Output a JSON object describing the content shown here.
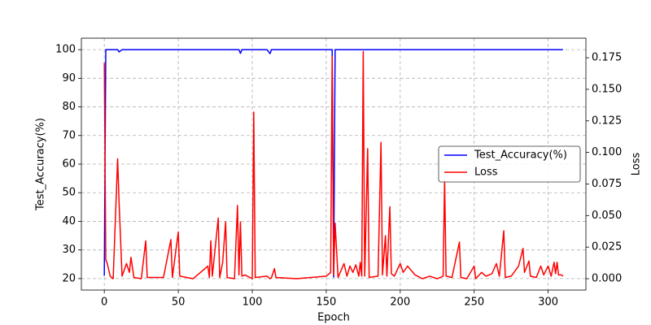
{
  "chart_data": {
    "type": "line",
    "xlabel": "Epoch",
    "ylabel": "Test_Accuracy(%)",
    "y2label": "Loss",
    "x": [
      0,
      1,
      2,
      4,
      6,
      9,
      10,
      12,
      15,
      17,
      18,
      20,
      25,
      28,
      29,
      40,
      45,
      46,
      50,
      51,
      60,
      70,
      71,
      72,
      73,
      77,
      78,
      80,
      82,
      83,
      88,
      90,
      91,
      92,
      93,
      95,
      100,
      101,
      102,
      110,
      112,
      113,
      115,
      116,
      130,
      150,
      153,
      154,
      155,
      156,
      158,
      162,
      164,
      166,
      168,
      170,
      172,
      173,
      174,
      175,
      176,
      178,
      179,
      185,
      187,
      188,
      190,
      191,
      193,
      194,
      196,
      200,
      202,
      205,
      210,
      215,
      220,
      225,
      229,
      230,
      231,
      235,
      240,
      241,
      245,
      250,
      251,
      255,
      258,
      262,
      265,
      267,
      270,
      271,
      275,
      280,
      283,
      284,
      287,
      288,
      292,
      295,
      297,
      300,
      302,
      304,
      305,
      306,
      307,
      309,
      310
    ],
    "series": [
      {
        "name": "Test_Accuracy(%)",
        "color": "#0000ff",
        "axis": "y",
        "values": [
          21,
          100,
          100,
          100,
          100,
          100,
          99.2,
          100,
          100,
          100,
          100,
          100,
          100,
          100,
          100,
          100,
          100,
          100,
          100,
          100,
          100,
          100,
          100,
          100,
          100,
          100,
          100,
          100,
          100,
          100,
          100,
          100,
          100,
          98.7,
          100,
          100,
          100,
          100,
          100,
          100,
          98.6,
          100,
          100,
          100,
          100,
          100,
          100,
          100,
          20.5,
          100,
          100,
          100,
          100,
          100,
          100,
          100,
          100,
          100,
          100,
          100,
          100,
          100,
          100,
          100,
          100,
          100,
          100,
          100,
          100,
          100,
          100,
          100,
          100,
          100,
          100,
          100,
          100,
          100,
          100,
          100,
          100,
          100,
          100,
          100,
          100,
          100,
          100,
          100,
          100,
          100,
          100,
          100,
          100,
          100,
          100,
          100,
          100,
          100,
          100,
          100,
          100,
          100,
          100,
          100,
          100,
          100,
          100,
          100,
          100,
          100,
          100
        ]
      },
      {
        "name": "Loss",
        "color": "#ff0000",
        "axis": "y2",
        "values": [
          0.171,
          0.015,
          0.012,
          0.002,
          0.0,
          0.095,
          0.06,
          0.002,
          0.012,
          0.005,
          0.017,
          0.001,
          0.0,
          0.03,
          0.001,
          0.001,
          0.031,
          0.001,
          0.037,
          0.002,
          0.0,
          0.01,
          0.001,
          0.03,
          0.002,
          0.048,
          0.001,
          0.013,
          0.045,
          0.001,
          0.0,
          0.058,
          0.003,
          0.045,
          0.002,
          0.003,
          0.0,
          0.132,
          0.001,
          0.002,
          0.0,
          0.001,
          0.008,
          0.001,
          0.0,
          0.002,
          0.005,
          0.176,
          0.003,
          0.044,
          0.001,
          0.012,
          0.002,
          0.01,
          0.005,
          0.011,
          0.002,
          0.013,
          0.002,
          0.18,
          0.002,
          0.103,
          0.001,
          0.002,
          0.108,
          0.003,
          0.034,
          0.002,
          0.057,
          0.004,
          0.002,
          0.012,
          0.005,
          0.01,
          0.003,
          0.0,
          0.002,
          0.0,
          0.002,
          0.078,
          0.002,
          0.001,
          0.029,
          0.001,
          0.0,
          0.01,
          0.0,
          0.005,
          0.002,
          0.004,
          0.012,
          0.002,
          0.038,
          0.001,
          0.002,
          0.01,
          0.024,
          0.005,
          0.014,
          0.002,
          0.001,
          0.01,
          0.003,
          0.01,
          0.002,
          0.013,
          0.004,
          0.013,
          0.003,
          0.003,
          0.002
        ]
      }
    ],
    "xlim": [
      -15.5,
      325.5
    ],
    "xticks": [
      0,
      50,
      100,
      150,
      200,
      250,
      300
    ],
    "ylim": [
      16,
      104
    ],
    "yticks": [
      20,
      30,
      40,
      50,
      60,
      70,
      80,
      90,
      100
    ],
    "y2lim": [
      -0.009,
      0.1905
    ],
    "y2ticks": [
      {
        "value": 0,
        "label": "0.000"
      },
      0.025,
      {
        "value": 0.05,
        "label": "0.050"
      },
      0.075,
      {
        "value": 0.1,
        "label": "0.100"
      },
      0.125,
      {
        "value": 0.15,
        "label": "0.150"
      },
      0.175
    ],
    "grid": true,
    "legend": "center right"
  }
}
